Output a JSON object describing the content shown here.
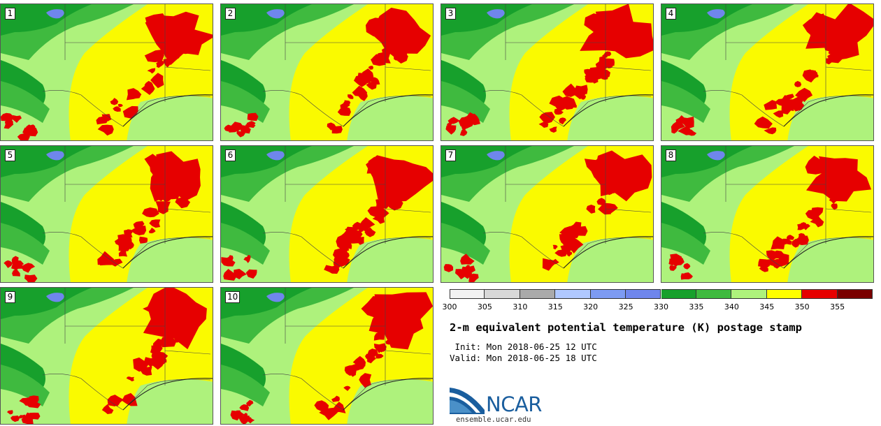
{
  "panels": [
    {
      "label": "1"
    },
    {
      "label": "2"
    },
    {
      "label": "3"
    },
    {
      "label": "4"
    },
    {
      "label": "5"
    },
    {
      "label": "6"
    },
    {
      "label": "7"
    },
    {
      "label": "8"
    },
    {
      "label": "9"
    },
    {
      "label": "10"
    }
  ],
  "colorbar": {
    "ticks": [
      "300",
      "305",
      "310",
      "315",
      "320",
      "325",
      "330",
      "335",
      "340",
      "345",
      "350",
      "355"
    ],
    "colors": [
      "#f2f2f2",
      "#d8d8d8",
      "#aaaaaa",
      "#b0c8ff",
      "#7d9bf2",
      "#6f86ec",
      "#17a02c",
      "#3fba3f",
      "#aef27c",
      "#ffff00",
      "#e60000",
      "#7a0000"
    ]
  },
  "title": "2-m equivalent potential temperature (K) postage stamp",
  "init": " Init: Mon 2018-06-25 12 UTC",
  "valid": "Valid: Mon 2018-06-25 18 UTC",
  "logo": {
    "text": "NCAR",
    "url": "ensemble.ucar.edu"
  }
}
